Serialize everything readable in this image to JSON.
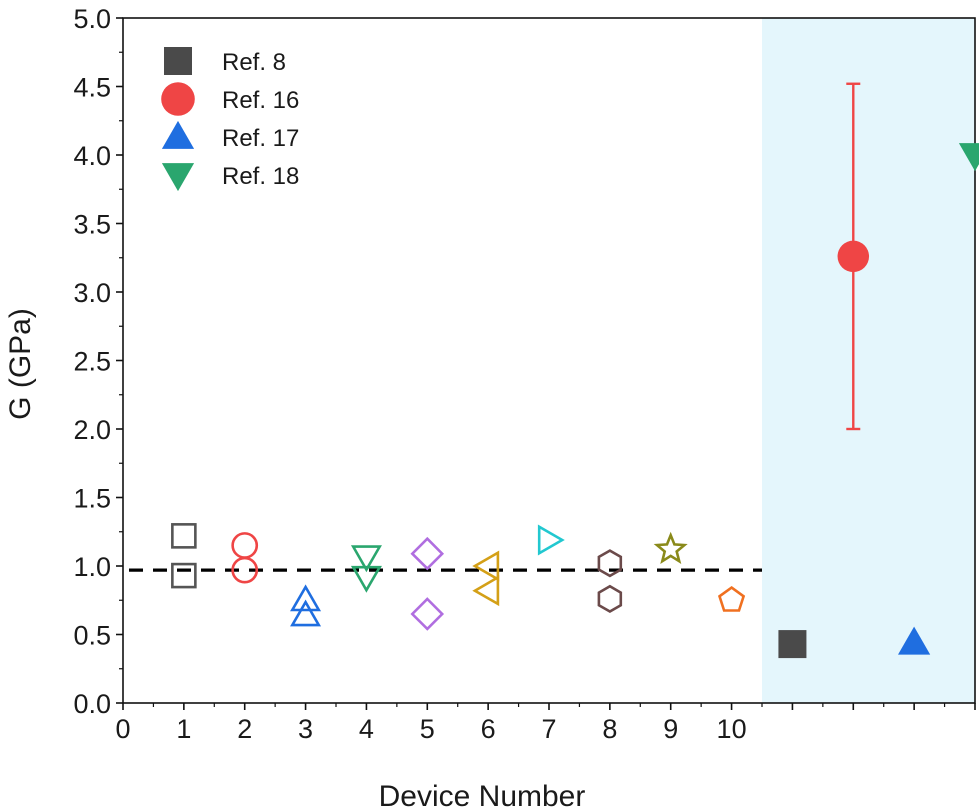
{
  "chart_data": {
    "type": "scatter",
    "xlabel": "Device Number",
    "ylabel": "G (GPa)",
    "xlim": [
      0,
      14
    ],
    "ylim": [
      0.0,
      5.0
    ],
    "x_ticks": [
      {
        "value": 0,
        "label": "0"
      },
      {
        "value": 1,
        "label": "1"
      },
      {
        "value": 2,
        "label": "2"
      },
      {
        "value": 3,
        "label": "3"
      },
      {
        "value": 4,
        "label": "4"
      },
      {
        "value": 5,
        "label": "5"
      },
      {
        "value": 6,
        "label": "6"
      },
      {
        "value": 7,
        "label": "7"
      },
      {
        "value": 8,
        "label": "8"
      },
      {
        "value": 9,
        "label": "9"
      },
      {
        "value": 10,
        "label": "10"
      },
      {
        "value": 11,
        "label": ""
      },
      {
        "value": 12,
        "label": ""
      },
      {
        "value": 13,
        "label": ""
      },
      {
        "value": 14,
        "label": ""
      }
    ],
    "y_ticks": [
      "0.0",
      "0.5",
      "1.0",
      "1.5",
      "2.0",
      "2.5",
      "3.0",
      "3.5",
      "4.0",
      "4.5",
      "5.0"
    ],
    "grid": false,
    "reference_line": {
      "y": 0.97,
      "x_range": [
        0,
        10.5
      ],
      "style": "dashed",
      "color": "#000000"
    },
    "shaded_region": {
      "x_range": [
        10.5,
        14
      ],
      "color": "#e4f6fc"
    },
    "device_measurements": [
      {
        "device": 1,
        "marker": "square",
        "color": "#555555",
        "values": [
          1.22,
          0.93
        ]
      },
      {
        "device": 2,
        "marker": "circle",
        "color": "#ef4545",
        "values": [
          1.15,
          0.97
        ]
      },
      {
        "device": 3,
        "marker": "triangle-up",
        "color": "#1f6ee0",
        "values": [
          0.75,
          0.64
        ]
      },
      {
        "device": 4,
        "marker": "triangle-down",
        "color": "#2aa66e",
        "values": [
          1.07,
          0.92
        ]
      },
      {
        "device": 5,
        "marker": "diamond",
        "color": "#b06ee0",
        "values": [
          1.09,
          0.65
        ]
      },
      {
        "device": 6,
        "marker": "triangle-left",
        "color": "#d4a017",
        "values": [
          1.0,
          0.82
        ]
      },
      {
        "device": 7,
        "marker": "triangle-right",
        "color": "#22c8d0",
        "values": [
          1.19
        ]
      },
      {
        "device": 8,
        "marker": "hexagon",
        "color": "#6b4a4a",
        "values": [
          1.02,
          0.76
        ]
      },
      {
        "device": 9,
        "marker": "star",
        "color": "#8a8a1a",
        "values": [
          1.12
        ]
      },
      {
        "device": 10,
        "marker": "pentagon",
        "color": "#f07020",
        "values": [
          0.75
        ]
      }
    ],
    "series": [
      {
        "name": "Ref. 8",
        "marker": "square",
        "color": "#4a4a4a",
        "x": 11,
        "y": 0.43
      },
      {
        "name": "Ref. 16",
        "marker": "circle",
        "color": "#ef4545",
        "x": 12,
        "y": 3.26,
        "error": [
          2.0,
          4.52
        ]
      },
      {
        "name": "Ref. 17",
        "marker": "triangle-up",
        "color": "#1f6ee0",
        "x": 13,
        "y": 0.44
      },
      {
        "name": "Ref. 18",
        "marker": "triangle-down",
        "color": "#2aa66e",
        "x": 14,
        "y": 4.0
      }
    ],
    "legend": {
      "placement": "top-left",
      "entries": [
        "Ref. 8",
        "Ref. 16",
        "Ref. 17",
        "Ref. 18"
      ]
    }
  }
}
